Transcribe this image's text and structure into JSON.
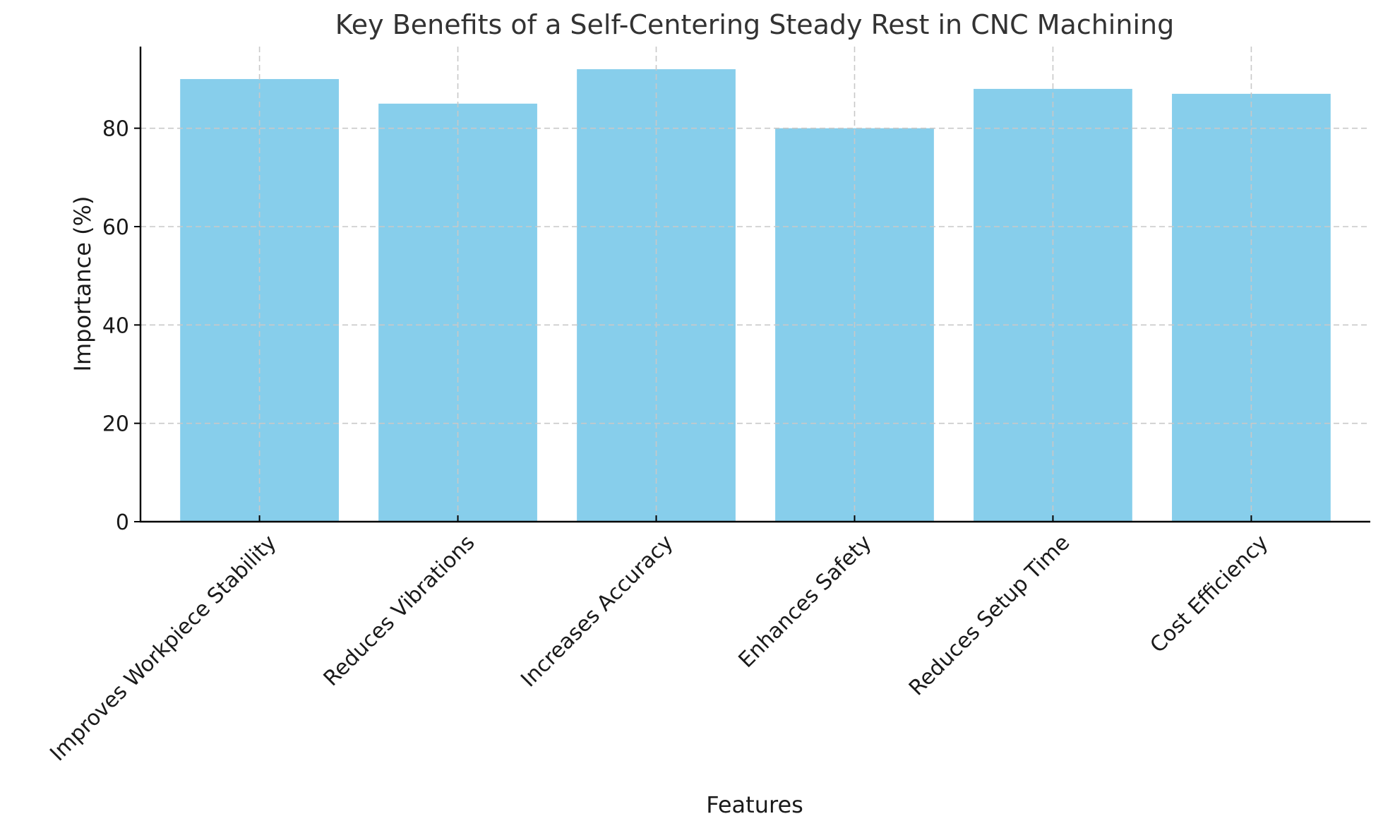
{
  "chart_data": {
    "type": "bar",
    "title": "Key Benefits of a Self-Centering Steady Rest in CNC Machining",
    "xlabel": "Features",
    "ylabel": "Importance (%)",
    "categories": [
      "Improves Workpiece Stability",
      "Reduces Vibrations",
      "Increases Accuracy",
      "Enhances Safety",
      "Reduces Setup Time",
      "Cost Efficiency"
    ],
    "values": [
      90,
      85,
      92,
      80,
      88,
      87
    ],
    "ylim": [
      0,
      96.6
    ],
    "yticks": [
      0,
      20,
      40,
      60,
      80
    ],
    "bar_color": "#87ceeb",
    "grid": true,
    "legend": "none"
  }
}
